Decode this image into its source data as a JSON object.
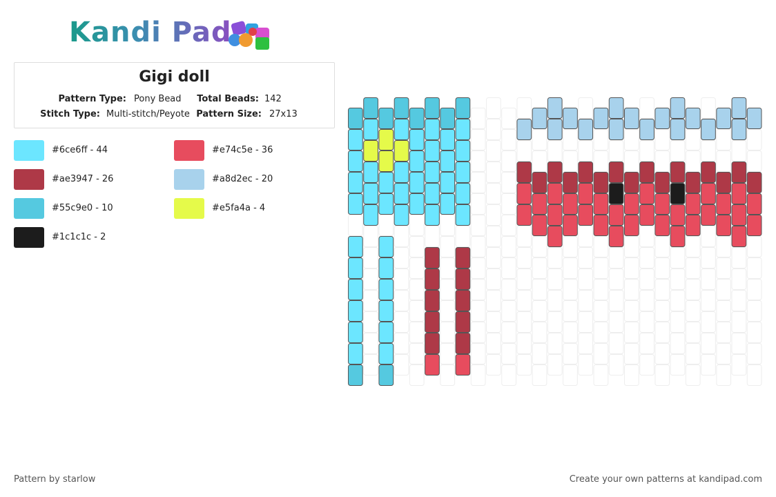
{
  "header": {
    "logo": "Kandi Pad"
  },
  "info": {
    "title": "Gigi doll",
    "fields": [
      {
        "label": "Pattern Type:",
        "value": "Pony Bead"
      },
      {
        "label": "Total Beads:",
        "value": "142"
      },
      {
        "label": "Stitch Type:",
        "value": "Multi-stitch/Peyote"
      },
      {
        "label": "Pattern Size:",
        "value": "27x13"
      }
    ]
  },
  "palette": [
    {
      "color": "#6ce6ff",
      "label": "#6ce6ff - 44"
    },
    {
      "color": "#e74c5e",
      "label": "#e74c5e - 36"
    },
    {
      "color": "#ae3947",
      "label": "#ae3947 - 26"
    },
    {
      "color": "#a8d2ec",
      "label": "#a8d2ec - 20"
    },
    {
      "color": "#55c9e0",
      "label": "#55c9e0 - 10"
    },
    {
      "color": "#e5fa4a",
      "label": "#e5fa4a - 4"
    },
    {
      "color": "#1c1c1c",
      "label": "#1c1c1c - 2"
    }
  ],
  "footer": {
    "credit": "Pattern by starlow",
    "promo": "Create your own patterns at kandipad.com"
  }
}
